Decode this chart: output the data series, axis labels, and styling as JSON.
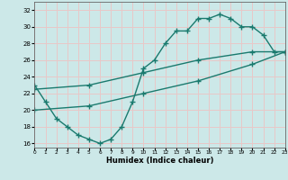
{
  "line1_x": [
    0,
    1,
    2,
    3,
    4,
    5,
    6,
    7,
    8,
    9,
    10,
    11,
    12,
    13,
    14,
    15,
    16,
    17,
    18,
    19,
    20,
    21,
    22,
    23
  ],
  "line1_y": [
    23,
    21,
    19,
    18,
    17,
    16.5,
    16,
    16.5,
    18,
    21,
    25,
    26,
    28,
    29.5,
    29.5,
    31,
    31,
    31.5,
    31,
    30,
    30,
    29,
    27,
    27
  ],
  "line2_x": [
    0,
    5,
    10,
    15,
    20,
    23
  ],
  "line2_y": [
    22.5,
    23.0,
    24.5,
    26.0,
    27.0,
    27.0
  ],
  "line3_x": [
    0,
    5,
    10,
    15,
    20,
    23
  ],
  "line3_y": [
    20.0,
    20.5,
    22.0,
    23.5,
    25.5,
    27.0
  ],
  "line_color": "#1a7a6e",
  "bg_color": "#cce8e8",
  "grid_color": "#e8c8c8",
  "xlabel": "Humidex (Indice chaleur)",
  "xlim": [
    0,
    23
  ],
  "ylim": [
    15.5,
    33
  ],
  "yticks": [
    16,
    18,
    20,
    22,
    24,
    26,
    28,
    30,
    32
  ],
  "xticks": [
    0,
    1,
    2,
    3,
    4,
    5,
    6,
    7,
    8,
    9,
    10,
    11,
    12,
    13,
    14,
    15,
    16,
    17,
    18,
    19,
    20,
    21,
    22,
    23
  ],
  "marker": "+",
  "markersize": 4,
  "linewidth": 1.0
}
